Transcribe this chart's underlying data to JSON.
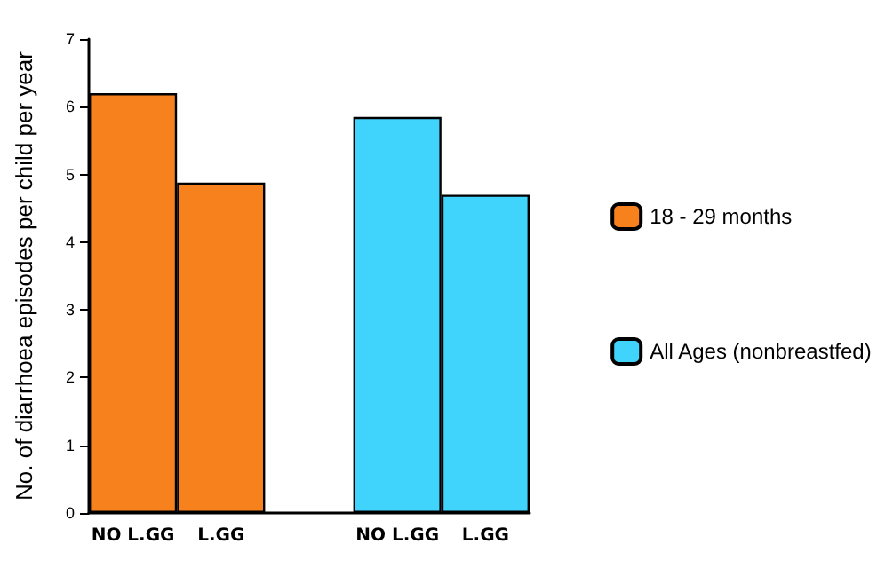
{
  "chart_data": {
    "type": "bar",
    "ylabel": "No. of diarrhoea episodes per child per year",
    "categories": [
      "NO L.GG",
      "L.GG",
      null,
      "NO L.GG",
      "L.GG"
    ],
    "series": [
      {
        "name": "18 - 29 months",
        "color": "#f7811d",
        "values": [
          6.2,
          4.88,
          null,
          null,
          null
        ]
      },
      {
        "name": "All Ages (nonbreastfed)",
        "color": "#40d3fb",
        "values": [
          null,
          null,
          null,
          5.85,
          4.7
        ]
      }
    ],
    "ylim": [
      0,
      7
    ],
    "yticks": [
      0,
      1,
      2,
      3,
      4,
      5,
      6,
      7
    ],
    "grid": false,
    "legend": "right"
  }
}
